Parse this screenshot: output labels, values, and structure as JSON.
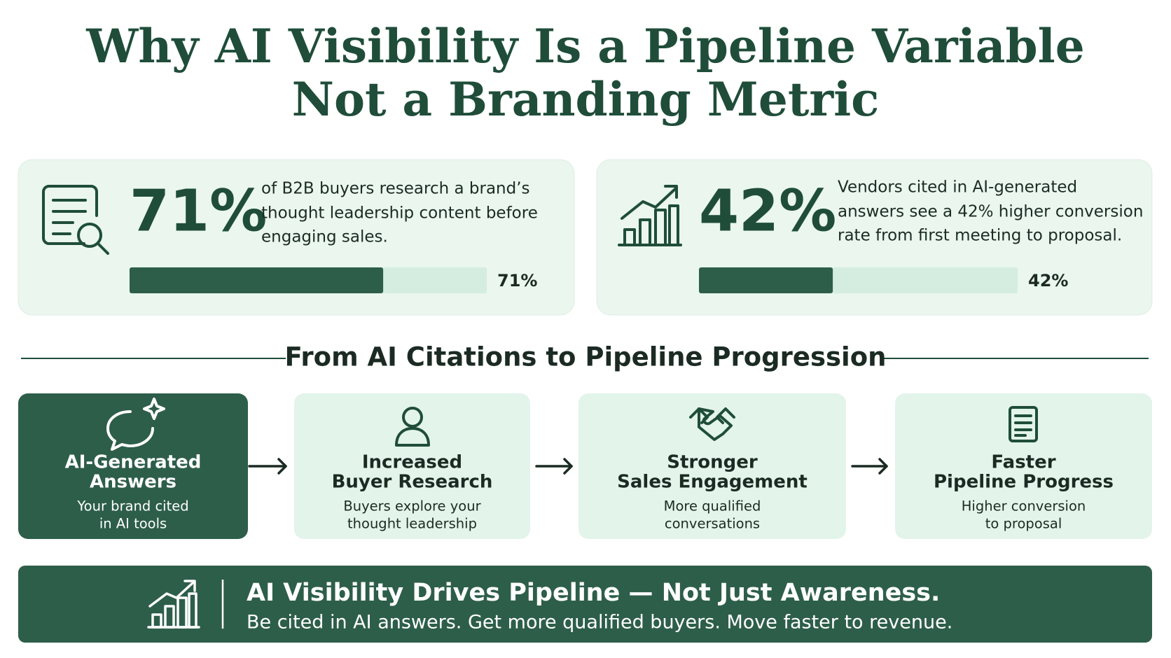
{
  "title_lines": [
    "Why AI Visibility Is a Pipeline Variable",
    "Not a Branding Metric"
  ],
  "stat_bar_range": [
    0,
    100
  ],
  "stats": [
    {
      "value": 71,
      "label": "71%",
      "text_lines": [
        "of B2B buyers research a brand’s",
        "thought leadership content before",
        "engaging sales."
      ]
    },
    {
      "value": 42,
      "label": "42%",
      "text_lines": [
        "Vendors cited in AI-generated",
        "answers see a 42% higher conversion",
        "rate from first meeting to proposal."
      ]
    }
  ],
  "section_title": "From AI Citations to Pipeline Progression",
  "steps": [
    {
      "title_lines": [
        "AI-Generated",
        "Answers"
      ],
      "text_lines": [
        "Your brand cited",
        "in AI tools"
      ]
    },
    {
      "title_lines": [
        "Increased",
        "Buyer Research"
      ],
      "text_lines": [
        "Buyers explore your",
        "thought leadership"
      ]
    },
    {
      "title_lines": [
        "Stronger",
        "Sales Engagement"
      ],
      "text_lines": [
        "More qualified",
        "conversations"
      ]
    },
    {
      "title_lines": [
        "Faster",
        "Pipeline Progress"
      ],
      "text_lines": [
        "Higher conversion",
        "to proposal"
      ]
    }
  ],
  "footer": {
    "headline": "AI Visibility Drives Pipeline — Not Just Awareness.",
    "text": "Be cited in AI answers. Get more qualified buyers. Move faster to revenue."
  }
}
